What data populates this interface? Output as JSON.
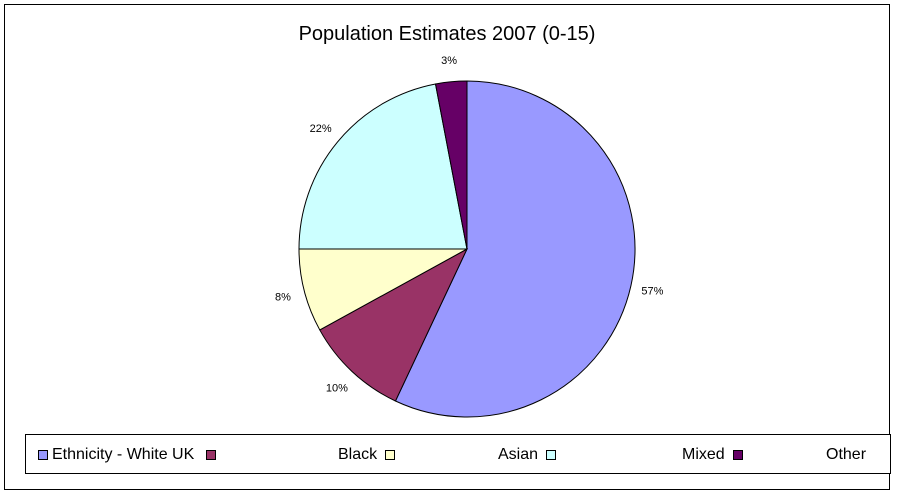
{
  "chart_data": {
    "type": "pie",
    "title": "Population Estimates 2007 (0-15)",
    "categories": [
      "Ethnicity - White UK",
      "Black",
      "Asian",
      "Mixed",
      "Other"
    ],
    "values": [
      57,
      10,
      8,
      22,
      3
    ],
    "labels": [
      "57%",
      "10%",
      "8%",
      "22%",
      "3%"
    ],
    "colors": [
      "#9999FF",
      "#993366",
      "#FFFFCC",
      "#CCFFFF",
      "#660066"
    ],
    "legend_position": "bottom"
  }
}
